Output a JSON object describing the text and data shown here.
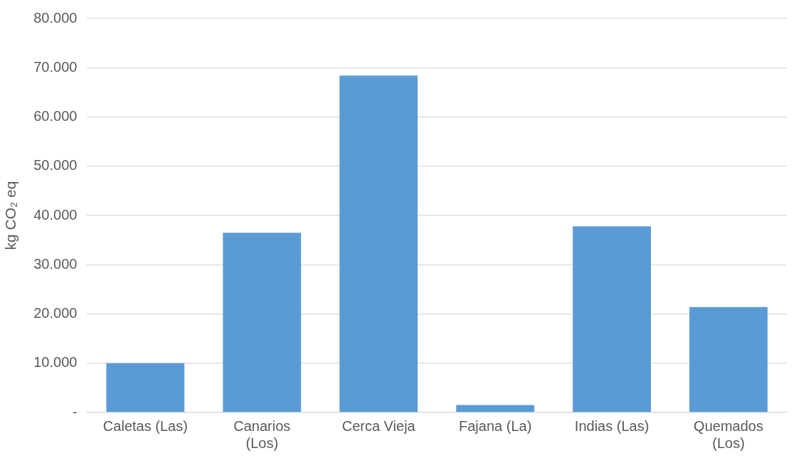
{
  "chart_data": {
    "type": "bar",
    "ylabel": "kg CO₂ eq",
    "categories": [
      "Caletas (Las)",
      "Canarios (Los)",
      "Cerca Vieja",
      "Fajana (La)",
      "Indias (Las)",
      "Quemados (Los)"
    ],
    "values": [
      10000,
      36500,
      68400,
      1500,
      37800,
      21400
    ],
    "color": "#5b9bd5",
    "ylim": [
      0,
      80000
    ],
    "yticks": [
      {
        "value": 0,
        "label": "-"
      },
      {
        "value": 10000,
        "label": "10.000"
      },
      {
        "value": 20000,
        "label": "20.000"
      },
      {
        "value": 30000,
        "label": "30.000"
      },
      {
        "value": 40000,
        "label": "40.000"
      },
      {
        "value": 50000,
        "label": "50.000"
      },
      {
        "value": 60000,
        "label": "60.000"
      },
      {
        "value": 70000,
        "label": "70.000"
      },
      {
        "value": 80000,
        "label": "80.000"
      }
    ],
    "grid": "y",
    "legend": false
  }
}
